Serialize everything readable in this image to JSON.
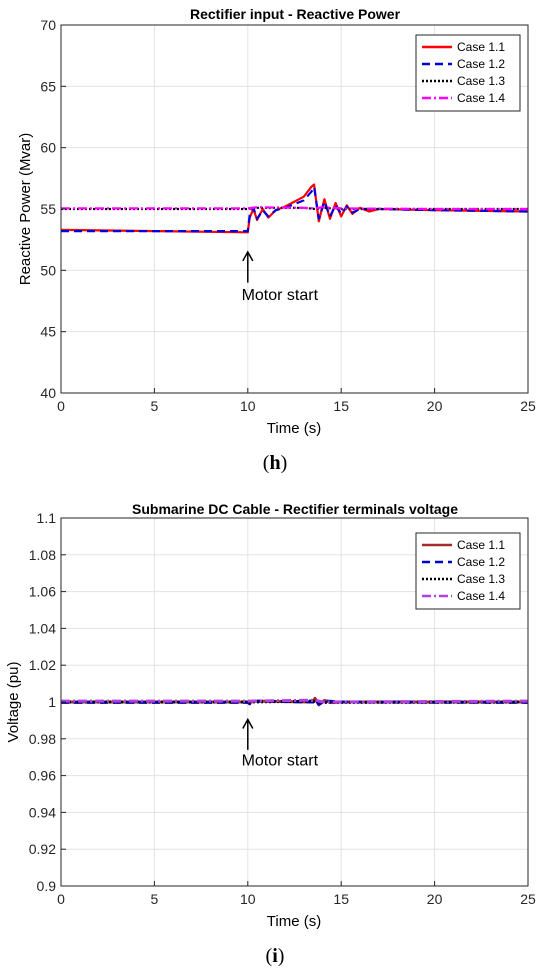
{
  "chart_data": [
    {
      "type": "line",
      "title": "Rectifier input - Reactive Power",
      "xlabel": "Time (s)",
      "ylabel": "Reactive Power (Mvar)",
      "xlim": [
        0,
        25
      ],
      "ylim": [
        40,
        70
      ],
      "xticks": [
        "0",
        "5",
        "10",
        "15",
        "20",
        "25"
      ],
      "yticks": [
        "40",
        "45",
        "50",
        "55",
        "60",
        "65",
        "70"
      ],
      "grid": true,
      "legend_position": "top-right",
      "annotation": {
        "text": "Motor start",
        "arrow_x": 10,
        "arrow_y_top": 51.5,
        "arrow_y_bottom": 49.0,
        "text_y": 47.6
      },
      "panel_label": "h",
      "series": [
        {
          "name": "Case 1.1",
          "color": "#ff0000",
          "dash": "solid",
          "points": [
            [
              0,
              53.3
            ],
            [
              10,
              53.1
            ],
            [
              10.1,
              54.3
            ],
            [
              10.3,
              55.0
            ],
            [
              10.5,
              54.1
            ],
            [
              10.8,
              55.0
            ],
            [
              11.1,
              54.3
            ],
            [
              11.5,
              54.9
            ],
            [
              12,
              55.2
            ],
            [
              12.5,
              55.6
            ],
            [
              13,
              56.0
            ],
            [
              13.4,
              56.8
            ],
            [
              13.55,
              57.0
            ],
            [
              13.8,
              54.0
            ],
            [
              14.1,
              55.8
            ],
            [
              14.4,
              54.2
            ],
            [
              14.7,
              55.5
            ],
            [
              15,
              54.4
            ],
            [
              15.3,
              55.3
            ],
            [
              15.6,
              54.6
            ],
            [
              16,
              55.1
            ],
            [
              16.5,
              54.8
            ],
            [
              17,
              55.0
            ],
            [
              20,
              54.9
            ],
            [
              25,
              54.8
            ]
          ]
        },
        {
          "name": "Case 1.2",
          "color": "#0000dd",
          "dash": "dash",
          "points": [
            [
              0,
              53.2
            ],
            [
              10,
              53.2
            ],
            [
              10.1,
              54.5
            ],
            [
              10.3,
              55.1
            ],
            [
              10.5,
              54.2
            ],
            [
              10.8,
              54.9
            ],
            [
              11.1,
              54.4
            ],
            [
              11.5,
              54.9
            ],
            [
              12,
              55.1
            ],
            [
              12.5,
              55.4
            ],
            [
              13,
              55.7
            ],
            [
              13.4,
              56.4
            ],
            [
              13.55,
              56.8
            ],
            [
              13.8,
              54.2
            ],
            [
              14.1,
              55.6
            ],
            [
              14.4,
              54.4
            ],
            [
              14.7,
              55.3
            ],
            [
              15,
              54.6
            ],
            [
              15.3,
              55.2
            ],
            [
              15.6,
              54.7
            ],
            [
              16,
              55.0
            ],
            [
              17,
              55.0
            ],
            [
              20,
              54.9
            ],
            [
              25,
              54.8
            ]
          ]
        },
        {
          "name": "Case 1.3",
          "color": "#000000",
          "dash": "dot",
          "points": [
            [
              0,
              55.0
            ],
            [
              10,
              55.0
            ],
            [
              10.5,
              55.1
            ],
            [
              13,
              55.1
            ],
            [
              13.6,
              55.0
            ],
            [
              14,
              55.1
            ],
            [
              15,
              55.0
            ],
            [
              20,
              55.0
            ],
            [
              25,
              55.0
            ]
          ]
        },
        {
          "name": "Case 1.4",
          "color": "#ff00ff",
          "dash": "dashdot",
          "points": [
            [
              0,
              55.05
            ],
            [
              10,
              55.05
            ],
            [
              10.5,
              55.15
            ],
            [
              13,
              55.1
            ],
            [
              13.6,
              55.05
            ],
            [
              14,
              55.15
            ],
            [
              15,
              55.05
            ],
            [
              20,
              55.0
            ],
            [
              25,
              55.0
            ]
          ]
        }
      ]
    },
    {
      "type": "line",
      "title": "Submarine DC Cable - Rectifier terminals voltage",
      "xlabel": "Time (s)",
      "ylabel": "Voltage (pu)",
      "xlim": [
        0,
        25
      ],
      "ylim": [
        0.9,
        1.1
      ],
      "xticks": [
        "0",
        "5",
        "10",
        "15",
        "20",
        "25"
      ],
      "yticks": [
        "0.9",
        "0.92",
        "0.94",
        "0.96",
        "0.98",
        "1",
        "1.02",
        "1.04",
        "1.06",
        "1.08",
        "1.1"
      ],
      "grid": true,
      "legend_position": "top-right",
      "annotation": {
        "text": "Motor start",
        "arrow_x": 10,
        "arrow_y_top": 0.9905,
        "arrow_y_bottom": 0.974,
        "text_y": 0.9655
      },
      "panel_label": "i",
      "series": [
        {
          "name": "Case 1.1",
          "color": "#a52a2a",
          "dash": "solid",
          "points": [
            [
              0,
              1.0
            ],
            [
              10,
              1.0
            ],
            [
              10.1,
              0.9995
            ],
            [
              10.3,
              1.0005
            ],
            [
              13.5,
              1.0
            ],
            [
              13.6,
              1.002
            ],
            [
              13.8,
              0.9985
            ],
            [
              14.1,
              1.0008
            ],
            [
              14.5,
              0.9997
            ],
            [
              15,
              1.0
            ],
            [
              25,
              1.0
            ]
          ]
        },
        {
          "name": "Case 1.2",
          "color": "#0000cc",
          "dash": "dash",
          "points": [
            [
              0,
              0.9998
            ],
            [
              10,
              0.9998
            ],
            [
              10.1,
              0.999
            ],
            [
              10.3,
              1.0005
            ],
            [
              13.5,
              1.0
            ],
            [
              13.6,
              1.0018
            ],
            [
              13.8,
              0.9988
            ],
            [
              14.1,
              1.0006
            ],
            [
              15,
              1.0
            ],
            [
              25,
              0.9998
            ]
          ]
        },
        {
          "name": "Case 1.3",
          "color": "#000000",
          "dash": "dot",
          "points": [
            [
              0,
              1.0
            ],
            [
              10,
              1.0
            ],
            [
              13.6,
              1.0005
            ],
            [
              14,
              0.9998
            ],
            [
              25,
              1.0
            ]
          ]
        },
        {
          "name": "Case 1.4",
          "color": "#b23ee6",
          "dash": "dashdot",
          "points": [
            [
              0,
              1.0005
            ],
            [
              10,
              1.0005
            ],
            [
              13.6,
              1.001
            ],
            [
              14,
              1.0
            ],
            [
              25,
              1.0005
            ]
          ]
        }
      ]
    }
  ]
}
